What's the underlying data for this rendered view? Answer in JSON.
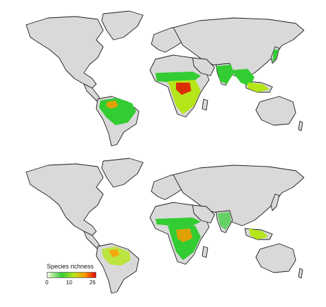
{
  "legend": {
    "title": "Species richness",
    "ticks": [
      "0",
      "10",
      "26"
    ],
    "colors": {
      "min": "#ffffff",
      "low": "#33cc33",
      "mid": "#b4e619",
      "high": "#ff9900",
      "max": "#e60000"
    }
  },
  "land_color": "#d9d9d9",
  "maps": [
    {
      "id": "top",
      "richness_regions": [
        "amazon-basin",
        "central-africa",
        "sahel-belt",
        "india",
        "southeast-asia",
        "japan"
      ]
    },
    {
      "id": "bottom",
      "richness_regions": [
        "amazon-basin-scattered",
        "central-africa",
        "sahel-belt",
        "india-scattered",
        "southeast-asia"
      ]
    }
  ]
}
